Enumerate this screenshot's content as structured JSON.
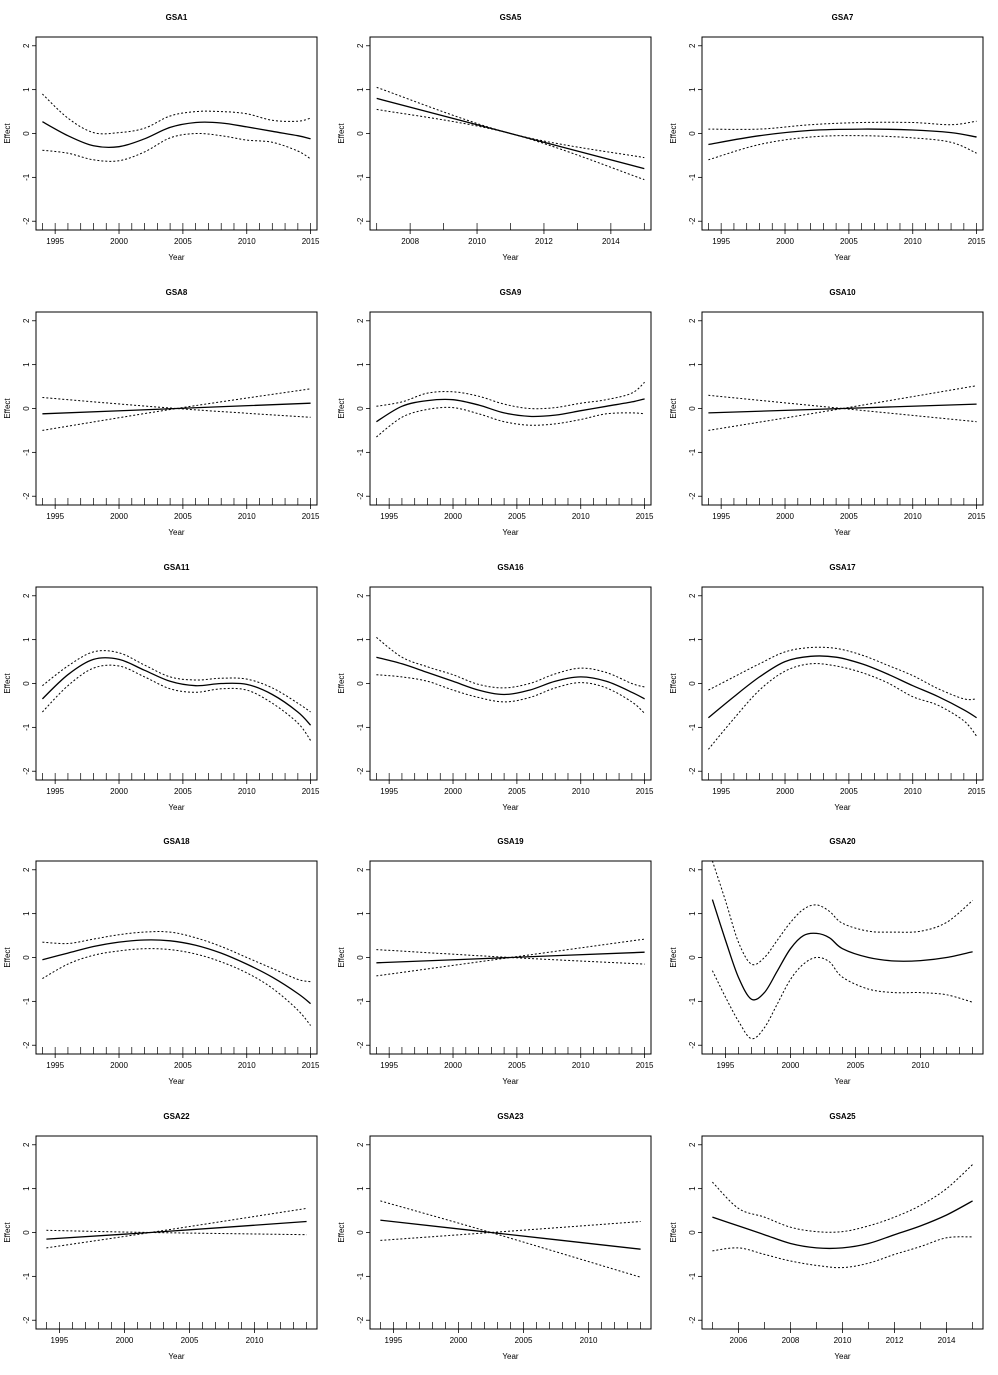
{
  "chart_data": [
    {
      "type": "line",
      "title": "GSA1",
      "xlabel": "Year",
      "ylabel": "Effect",
      "xlim": [
        1993.5,
        2015.5
      ],
      "ylim": [
        -2.2,
        2.2
      ],
      "xticks": [
        1995,
        2000,
        2005,
        2010,
        2015
      ],
      "yticks": [
        -2,
        -1,
        0,
        1,
        2
      ],
      "x": [
        1994,
        1996,
        1998,
        2000,
        2002,
        2004,
        2006,
        2008,
        2010,
        2012,
        2014,
        2015
      ],
      "series": [
        {
          "values": [
            0.27,
            -0.05,
            -0.28,
            -0.3,
            -0.12,
            0.14,
            0.25,
            0.24,
            0.15,
            0.05,
            -0.05,
            -0.12
          ],
          "style": "solid"
        },
        {
          "values": [
            0.9,
            0.35,
            0.02,
            0.02,
            0.12,
            0.4,
            0.5,
            0.5,
            0.45,
            0.3,
            0.28,
            0.35
          ],
          "style": "dotted"
        },
        {
          "values": [
            -0.38,
            -0.45,
            -0.6,
            -0.62,
            -0.42,
            -0.1,
            0.0,
            -0.05,
            -0.15,
            -0.2,
            -0.4,
            -0.58
          ],
          "style": "dotted"
        }
      ]
    },
    {
      "type": "line",
      "title": "GSA5",
      "xlabel": "Year",
      "ylabel": "Effect",
      "xlim": [
        2006.8,
        2015.2
      ],
      "ylim": [
        -2.2,
        2.2
      ],
      "xticks": [
        2008,
        2010,
        2012,
        2014
      ],
      "yticks": [
        -2,
        -1,
        0,
        1,
        2
      ],
      "x": [
        2007,
        2011,
        2015
      ],
      "series": [
        {
          "values": [
            0.8,
            0.0,
            -0.8
          ],
          "style": "solid"
        },
        {
          "values": [
            1.05,
            0.0,
            -0.55
          ],
          "style": "dotted"
        },
        {
          "values": [
            0.55,
            0.0,
            -1.05
          ],
          "style": "dotted"
        }
      ]
    },
    {
      "type": "line",
      "title": "GSA7",
      "xlabel": "Year",
      "ylabel": "Effect",
      "xlim": [
        1993.5,
        2015.5
      ],
      "ylim": [
        -2.2,
        2.2
      ],
      "xticks": [
        1995,
        2000,
        2005,
        2010,
        2015
      ],
      "yticks": [
        -2,
        -1,
        0,
        1,
        2
      ],
      "x": [
        1994,
        1998,
        2002,
        2006,
        2010,
        2013,
        2015
      ],
      "series": [
        {
          "values": [
            -0.25,
            -0.05,
            0.07,
            0.1,
            0.08,
            0.02,
            -0.08
          ],
          "style": "solid"
        },
        {
          "values": [
            0.1,
            0.1,
            0.2,
            0.25,
            0.25,
            0.2,
            0.28
          ],
          "style": "dotted"
        },
        {
          "values": [
            -0.6,
            -0.25,
            -0.08,
            -0.05,
            -0.1,
            -0.2,
            -0.45
          ],
          "style": "dotted"
        }
      ]
    },
    {
      "type": "line",
      "title": "GSA8",
      "xlabel": "Year",
      "ylabel": "Effect",
      "xlim": [
        1993.5,
        2015.5
      ],
      "ylim": [
        -2.2,
        2.2
      ],
      "xticks": [
        1995,
        2000,
        2005,
        2010,
        2015
      ],
      "yticks": [
        -2,
        -1,
        0,
        1,
        2
      ],
      "x": [
        1994,
        2004.5,
        2015
      ],
      "series": [
        {
          "values": [
            -0.12,
            0.0,
            0.12
          ],
          "style": "solid"
        },
        {
          "values": [
            0.25,
            0.0,
            -0.2
          ],
          "style": "dotted"
        },
        {
          "values": [
            -0.5,
            0.0,
            0.45
          ],
          "style": "dotted"
        }
      ]
    },
    {
      "type": "line",
      "title": "GSA9",
      "xlabel": "Year",
      "ylabel": "Effect",
      "xlim": [
        1993.5,
        2015.5
      ],
      "ylim": [
        -2.2,
        2.2
      ],
      "xticks": [
        1995,
        2000,
        2005,
        2010,
        2015
      ],
      "yticks": [
        -2,
        -1,
        0,
        1,
        2
      ],
      "x": [
        1994,
        1996,
        1998,
        2000,
        2002,
        2004,
        2006,
        2008,
        2010,
        2012,
        2014,
        2015
      ],
      "series": [
        {
          "values": [
            -0.3,
            0.05,
            0.18,
            0.2,
            0.08,
            -0.1,
            -0.18,
            -0.15,
            -0.05,
            0.05,
            0.15,
            0.22
          ],
          "style": "solid"
        },
        {
          "values": [
            0.05,
            0.15,
            0.35,
            0.38,
            0.28,
            0.1,
            0.0,
            0.02,
            0.12,
            0.2,
            0.35,
            0.6
          ],
          "style": "dotted"
        },
        {
          "values": [
            -0.65,
            -0.2,
            -0.02,
            0.02,
            -0.12,
            -0.3,
            -0.38,
            -0.35,
            -0.25,
            -0.12,
            -0.1,
            -0.12
          ],
          "style": "dotted"
        }
      ]
    },
    {
      "type": "line",
      "title": "GSA10",
      "xlabel": "Year",
      "ylabel": "Effect",
      "xlim": [
        1993.5,
        2015.5
      ],
      "ylim": [
        -2.2,
        2.2
      ],
      "xticks": [
        1995,
        2000,
        2005,
        2010,
        2015
      ],
      "yticks": [
        -2,
        -1,
        0,
        1,
        2
      ],
      "x": [
        1994,
        2004.5,
        2015
      ],
      "series": [
        {
          "values": [
            -0.1,
            0.0,
            0.1
          ],
          "style": "solid"
        },
        {
          "values": [
            0.3,
            0.0,
            -0.3
          ],
          "style": "dotted"
        },
        {
          "values": [
            -0.5,
            0.0,
            0.52
          ],
          "style": "dotted"
        }
      ]
    },
    {
      "type": "line",
      "title": "GSA11",
      "xlabel": "Year",
      "ylabel": "Effect",
      "xlim": [
        1993.5,
        2015.5
      ],
      "ylim": [
        -2.2,
        2.2
      ],
      "xticks": [
        1995,
        2000,
        2005,
        2010,
        2015
      ],
      "yticks": [
        -2,
        -1,
        0,
        1,
        2
      ],
      "x": [
        1994,
        1996,
        1998,
        2000,
        2002,
        2004,
        2006,
        2008,
        2010,
        2012,
        2014,
        2015
      ],
      "series": [
        {
          "values": [
            -0.35,
            0.2,
            0.55,
            0.55,
            0.3,
            0.05,
            -0.05,
            0.0,
            -0.02,
            -0.25,
            -0.65,
            -0.95
          ],
          "style": "solid"
        },
        {
          "values": [
            -0.05,
            0.4,
            0.72,
            0.7,
            0.42,
            0.15,
            0.08,
            0.12,
            0.1,
            -0.1,
            -0.45,
            -0.65
          ],
          "style": "dotted"
        },
        {
          "values": [
            -0.65,
            -0.05,
            0.35,
            0.4,
            0.15,
            -0.12,
            -0.2,
            -0.12,
            -0.15,
            -0.45,
            -0.9,
            -1.3
          ],
          "style": "dotted"
        }
      ]
    },
    {
      "type": "line",
      "title": "GSA16",
      "xlabel": "Year",
      "ylabel": "Effect",
      "xlim": [
        1993.5,
        2015.5
      ],
      "ylim": [
        -2.2,
        2.2
      ],
      "xticks": [
        1995,
        2000,
        2005,
        2010,
        2015
      ],
      "yticks": [
        -2,
        -1,
        0,
        1,
        2
      ],
      "x": [
        1994,
        1996,
        1998,
        2000,
        2002,
        2004,
        2006,
        2008,
        2010,
        2012,
        2014,
        2015
      ],
      "series": [
        {
          "values": [
            0.6,
            0.45,
            0.25,
            0.05,
            -0.15,
            -0.25,
            -0.15,
            0.05,
            0.15,
            0.05,
            -0.2,
            -0.35
          ],
          "style": "solid"
        },
        {
          "values": [
            1.05,
            0.6,
            0.38,
            0.2,
            -0.02,
            -0.1,
            0.0,
            0.22,
            0.35,
            0.25,
            0.0,
            -0.08
          ],
          "style": "dotted"
        },
        {
          "values": [
            0.2,
            0.15,
            0.05,
            -0.15,
            -0.32,
            -0.42,
            -0.32,
            -0.1,
            0.02,
            -0.1,
            -0.42,
            -0.68
          ],
          "style": "dotted"
        }
      ]
    },
    {
      "type": "line",
      "title": "GSA17",
      "xlabel": "Year",
      "ylabel": "Effect",
      "xlim": [
        1993.5,
        2015.5
      ],
      "ylim": [
        -2.2,
        2.2
      ],
      "xticks": [
        1995,
        2000,
        2005,
        2010,
        2015
      ],
      "yticks": [
        -2,
        -1,
        0,
        1,
        2
      ],
      "x": [
        1994,
        1996,
        1998,
        2000,
        2002,
        2004,
        2006,
        2008,
        2010,
        2012,
        2014,
        2015
      ],
      "series": [
        {
          "values": [
            -0.78,
            -0.3,
            0.15,
            0.5,
            0.62,
            0.6,
            0.45,
            0.22,
            -0.05,
            -0.3,
            -0.6,
            -0.78
          ],
          "style": "solid"
        },
        {
          "values": [
            -0.15,
            0.15,
            0.45,
            0.72,
            0.82,
            0.8,
            0.65,
            0.42,
            0.18,
            -0.12,
            -0.35,
            -0.35
          ],
          "style": "dotted"
        },
        {
          "values": [
            -1.5,
            -0.8,
            -0.15,
            0.28,
            0.45,
            0.4,
            0.25,
            0.02,
            -0.3,
            -0.5,
            -0.85,
            -1.2
          ],
          "style": "dotted"
        }
      ]
    },
    {
      "type": "line",
      "title": "GSA18",
      "xlabel": "Year",
      "ylabel": "Effect",
      "xlim": [
        1993.5,
        2015.5
      ],
      "ylim": [
        -2.2,
        2.2
      ],
      "xticks": [
        1995,
        2000,
        2005,
        2010,
        2015
      ],
      "yticks": [
        -2,
        -1,
        0,
        1,
        2
      ],
      "x": [
        1994,
        1996,
        1998,
        2000,
        2002,
        2004,
        2006,
        2008,
        2010,
        2012,
        2014,
        2015
      ],
      "series": [
        {
          "values": [
            -0.05,
            0.1,
            0.25,
            0.35,
            0.4,
            0.38,
            0.28,
            0.1,
            -0.15,
            -0.45,
            -0.82,
            -1.05
          ],
          "style": "solid"
        },
        {
          "values": [
            0.35,
            0.32,
            0.42,
            0.52,
            0.58,
            0.58,
            0.45,
            0.25,
            0.0,
            -0.25,
            -0.5,
            -0.55
          ],
          "style": "dotted"
        },
        {
          "values": [
            -0.48,
            -0.15,
            0.05,
            0.15,
            0.2,
            0.18,
            0.08,
            -0.1,
            -0.35,
            -0.7,
            -1.2,
            -1.55
          ],
          "style": "dotted"
        }
      ]
    },
    {
      "type": "line",
      "title": "GSA19",
      "xlabel": "Year",
      "ylabel": "Effect",
      "xlim": [
        1993.5,
        2015.5
      ],
      "ylim": [
        -2.2,
        2.2
      ],
      "xticks": [
        1995,
        2000,
        2005,
        2010,
        2015
      ],
      "yticks": [
        -2,
        -1,
        0,
        1,
        2
      ],
      "x": [
        1994,
        2004.5,
        2015
      ],
      "series": [
        {
          "values": [
            -0.12,
            0.0,
            0.12
          ],
          "style": "solid"
        },
        {
          "values": [
            0.18,
            0.0,
            -0.15
          ],
          "style": "dotted"
        },
        {
          "values": [
            -0.42,
            0.0,
            0.42
          ],
          "style": "dotted"
        }
      ]
    },
    {
      "type": "line",
      "title": "GSA20",
      "xlabel": "Year",
      "ylabel": "Effect",
      "xlim": [
        1993.2,
        2014.8
      ],
      "ylim": [
        -2.2,
        2.2
      ],
      "xticks": [
        1995,
        2000,
        2005,
        2010
      ],
      "yticks": [
        -2,
        -1,
        0,
        1,
        2
      ],
      "x": [
        1994,
        1995,
        1996,
        1997,
        1998,
        1999,
        2000,
        2001,
        2002,
        2003,
        2004,
        2006,
        2008,
        2010,
        2012,
        2014
      ],
      "series": [
        {
          "values": [
            1.32,
            0.4,
            -0.45,
            -0.95,
            -0.8,
            -0.3,
            0.2,
            0.5,
            0.55,
            0.45,
            0.2,
            0.0,
            -0.08,
            -0.07,
            0.0,
            0.13
          ],
          "style": "solid"
        },
        {
          "values": [
            2.2,
            1.3,
            0.35,
            -0.15,
            0.0,
            0.4,
            0.8,
            1.1,
            1.2,
            1.05,
            0.78,
            0.6,
            0.58,
            0.6,
            0.8,
            1.3
          ],
          "style": "dotted"
        },
        {
          "values": [
            -0.3,
            -0.9,
            -1.45,
            -1.85,
            -1.6,
            -1.05,
            -0.5,
            -0.15,
            0.0,
            -0.1,
            -0.45,
            -0.72,
            -0.8,
            -0.8,
            -0.85,
            -1.02
          ],
          "style": "dotted"
        }
      ]
    },
    {
      "type": "line",
      "title": "GSA22",
      "xlabel": "Year",
      "ylabel": "Effect",
      "xlim": [
        1993.2,
        2014.8
      ],
      "ylim": [
        -2.2,
        2.2
      ],
      "xticks": [
        1995,
        2000,
        2005,
        2010
      ],
      "yticks": [
        -2,
        -1,
        0,
        1,
        2
      ],
      "x": [
        1994,
        2002,
        2014
      ],
      "series": [
        {
          "values": [
            -0.15,
            0.0,
            0.25
          ],
          "style": "solid"
        },
        {
          "values": [
            0.05,
            0.0,
            -0.05
          ],
          "style": "dotted"
        },
        {
          "values": [
            -0.35,
            0.0,
            0.55
          ],
          "style": "dotted"
        }
      ]
    },
    {
      "type": "line",
      "title": "GSA23",
      "xlabel": "Year",
      "ylabel": "Effect",
      "xlim": [
        1993.2,
        2014.8
      ],
      "ylim": [
        -2.2,
        2.2
      ],
      "xticks": [
        1995,
        2000,
        2005,
        2010
      ],
      "yticks": [
        -2,
        -1,
        0,
        1,
        2
      ],
      "x": [
        1994,
        2002.5,
        2014
      ],
      "series": [
        {
          "values": [
            0.28,
            0.0,
            -0.38
          ],
          "style": "solid"
        },
        {
          "values": [
            0.72,
            0.0,
            -1.02
          ],
          "style": "dotted"
        },
        {
          "values": [
            -0.18,
            0.0,
            0.25
          ],
          "style": "dotted"
        }
      ]
    },
    {
      "type": "line",
      "title": "GSA25",
      "xlabel": "Year",
      "ylabel": "Effect",
      "xlim": [
        2004.6,
        2015.4
      ],
      "ylim": [
        -2.2,
        2.2
      ],
      "xticks": [
        2006,
        2008,
        2010,
        2012,
        2014
      ],
      "yticks": [
        -2,
        -1,
        0,
        1,
        2
      ],
      "x": [
        2005,
        2006,
        2007,
        2008,
        2009,
        2010,
        2011,
        2012,
        2013,
        2014,
        2015
      ],
      "series": [
        {
          "values": [
            0.35,
            0.15,
            -0.05,
            -0.25,
            -0.35,
            -0.35,
            -0.25,
            -0.05,
            0.15,
            0.4,
            0.72
          ],
          "style": "solid"
        },
        {
          "values": [
            1.15,
            0.55,
            0.35,
            0.12,
            0.02,
            0.02,
            0.15,
            0.35,
            0.62,
            1.0,
            1.55
          ],
          "style": "dotted"
        },
        {
          "values": [
            -0.42,
            -0.35,
            -0.5,
            -0.65,
            -0.75,
            -0.8,
            -0.7,
            -0.5,
            -0.32,
            -0.12,
            -0.1
          ],
          "style": "dotted"
        }
      ]
    }
  ]
}
